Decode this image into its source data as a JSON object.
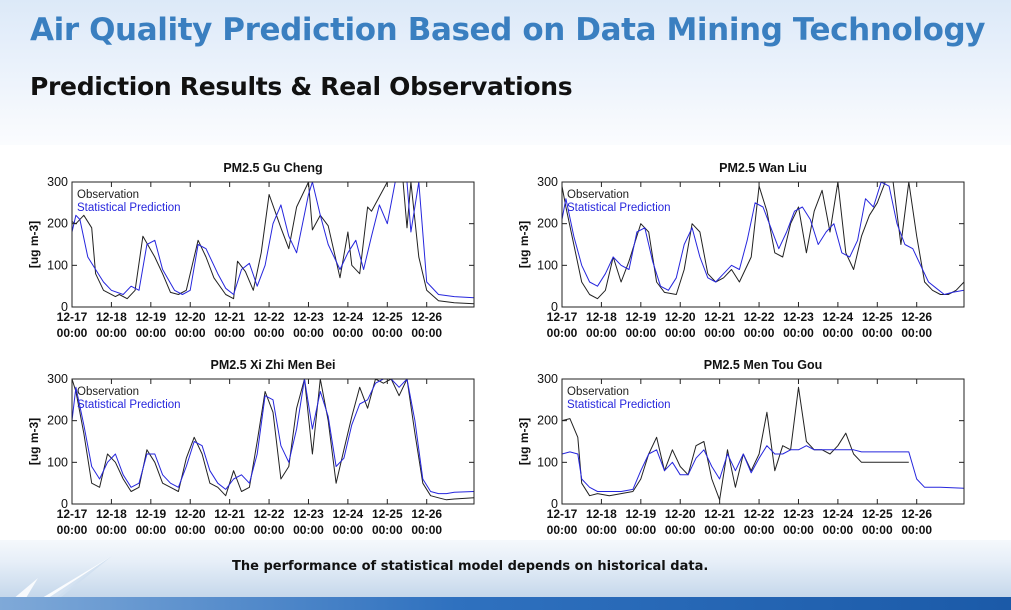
{
  "slide": {
    "title": "Air Quality Prediction Based on Data Mining Technology",
    "subtitle": "Prediction Results & Real Observations",
    "footer": "The performance of statistical model depends on historical data."
  },
  "colors": {
    "observation": "#222222",
    "prediction": "#2626dd",
    "title": "#3a7fc0"
  },
  "chart_data": [
    {
      "type": "line",
      "title": "PM2.5  Gu Cheng",
      "ylabel": "[ug m-3]",
      "ylim": [
        0,
        300
      ],
      "yticks": [
        0,
        100,
        200,
        300
      ],
      "xlim": [
        0,
        10.2
      ],
      "x_ticks": [
        {
          "date": "12-17",
          "time": "00:00"
        },
        {
          "date": "12-18",
          "time": "00:00"
        },
        {
          "date": "12-19",
          "time": "00:00"
        },
        {
          "date": "12-20",
          "time": "00:00"
        },
        {
          "date": "12-21",
          "time": "00:00"
        },
        {
          "date": "12-22",
          "time": "00:00"
        },
        {
          "date": "12-23",
          "time": "00:00"
        },
        {
          "date": "12-24",
          "time": "00:00"
        },
        {
          "date": "12-25",
          "time": "00:00"
        },
        {
          "date": "12-26",
          "time": "00:00"
        }
      ],
      "legend": "top-left",
      "series": [
        {
          "name": "Observation",
          "color": "#222222",
          "x": [
            0,
            0.1,
            0.3,
            0.5,
            0.6,
            0.8,
            1.1,
            1.2,
            1.4,
            1.6,
            1.8,
            2.1,
            2.3,
            2.5,
            2.7,
            2.9,
            3.2,
            3.4,
            3.6,
            3.9,
            4.1,
            4.2,
            4.4,
            4.6,
            4.8,
            5.0,
            5.3,
            5.5,
            5.7,
            6.0,
            6.1,
            6.3,
            6.5,
            6.8,
            7.0,
            7.1,
            7.3,
            7.5,
            7.6,
            8.0,
            8.2,
            8.4,
            8.5,
            8.6,
            8.8,
            9.0,
            9.3,
            9.7,
            10.2
          ],
          "y": [
            205,
            200,
            220,
            190,
            80,
            40,
            25,
            30,
            20,
            40,
            170,
            120,
            80,
            35,
            30,
            40,
            160,
            120,
            70,
            30,
            20,
            110,
            85,
            40,
            130,
            270,
            190,
            140,
            240,
            300,
            185,
            220,
            195,
            70,
            180,
            100,
            80,
            240,
            230,
            300,
            300,
            300,
            190,
            300,
            120,
            40,
            15,
            10,
            8
          ]
        },
        {
          "name": "Statistical Prediction",
          "color": "#2626dd",
          "x": [
            0,
            0.1,
            0.2,
            0.4,
            0.6,
            0.8,
            1.0,
            1.3,
            1.5,
            1.7,
            1.9,
            2.1,
            2.3,
            2.6,
            2.8,
            3.0,
            3.2,
            3.4,
            3.7,
            3.9,
            4.1,
            4.3,
            4.5,
            4.7,
            4.9,
            5.1,
            5.3,
            5.5,
            5.7,
            6.0,
            6.1,
            6.3,
            6.5,
            6.8,
            7.0,
            7.2,
            7.4,
            7.6,
            7.8,
            8.0,
            8.2,
            8.5,
            8.6,
            8.8,
            9.0,
            9.3,
            9.7,
            10.2
          ],
          "y": [
            180,
            220,
            210,
            120,
            90,
            60,
            40,
            30,
            50,
            40,
            150,
            160,
            90,
            40,
            30,
            40,
            150,
            140,
            80,
            45,
            30,
            90,
            105,
            50,
            100,
            200,
            245,
            170,
            130,
            270,
            300,
            220,
            150,
            90,
            130,
            160,
            90,
            170,
            245,
            200,
            300,
            300,
            180,
            300,
            60,
            30,
            25,
            22
          ]
        }
      ]
    },
    {
      "type": "line",
      "title": "PM2.5  Wan Liu",
      "ylabel": "[ug m-3]",
      "ylim": [
        0,
        300
      ],
      "yticks": [
        0,
        100,
        200,
        300
      ],
      "xlim": [
        0,
        10.2
      ],
      "x_ticks": [
        {
          "date": "12-17",
          "time": "00:00"
        },
        {
          "date": "12-18",
          "time": "00:00"
        },
        {
          "date": "12-19",
          "time": "00:00"
        },
        {
          "date": "12-20",
          "time": "00:00"
        },
        {
          "date": "12-21",
          "time": "00:00"
        },
        {
          "date": "12-22",
          "time": "00:00"
        },
        {
          "date": "12-23",
          "time": "00:00"
        },
        {
          "date": "12-24",
          "time": "00:00"
        },
        {
          "date": "12-25",
          "time": "00:00"
        },
        {
          "date": "12-26",
          "time": "00:00"
        }
      ],
      "legend": "top-left",
      "series": [
        {
          "name": "Observation",
          "color": "#222222",
          "x": [
            0,
            0.1,
            0.3,
            0.5,
            0.7,
            0.9,
            1.1,
            1.3,
            1.5,
            1.7,
            2.0,
            2.2,
            2.4,
            2.6,
            2.9,
            3.1,
            3.3,
            3.5,
            3.7,
            3.9,
            4.1,
            4.3,
            4.5,
            4.8,
            5.0,
            5.2,
            5.4,
            5.6,
            5.8,
            6.0,
            6.2,
            6.4,
            6.6,
            6.8,
            7.0,
            7.2,
            7.4,
            7.6,
            7.8,
            8.0,
            8.2,
            8.4,
            8.6,
            8.8,
            9.0,
            9.2,
            9.4,
            9.6,
            9.8,
            10.0,
            10.2
          ],
          "y": [
            290,
            240,
            150,
            60,
            30,
            20,
            40,
            120,
            60,
            110,
            200,
            180,
            60,
            35,
            30,
            90,
            200,
            180,
            80,
            60,
            70,
            90,
            60,
            120,
            290,
            230,
            130,
            120,
            200,
            240,
            130,
            230,
            280,
            180,
            300,
            130,
            90,
            170,
            220,
            250,
            300,
            300,
            150,
            300,
            170,
            60,
            40,
            30,
            30,
            40,
            60
          ]
        },
        {
          "name": "Statistical Prediction",
          "color": "#2626dd",
          "x": [
            0,
            0.1,
            0.3,
            0.5,
            0.7,
            0.9,
            1.1,
            1.3,
            1.5,
            1.7,
            1.9,
            2.1,
            2.3,
            2.5,
            2.7,
            2.9,
            3.1,
            3.3,
            3.5,
            3.7,
            3.9,
            4.1,
            4.3,
            4.5,
            4.7,
            4.9,
            5.1,
            5.3,
            5.5,
            5.7,
            5.9,
            6.1,
            6.3,
            6.5,
            6.7,
            6.9,
            7.1,
            7.3,
            7.5,
            7.7,
            7.9,
            8.1,
            8.3,
            8.5,
            8.7,
            8.9,
            9.1,
            9.3,
            9.5,
            9.7,
            9.9,
            10.2
          ],
          "y": [
            210,
            260,
            170,
            100,
            60,
            50,
            80,
            120,
            100,
            90,
            180,
            190,
            110,
            50,
            40,
            70,
            150,
            190,
            120,
            70,
            60,
            80,
            100,
            90,
            160,
            250,
            240,
            190,
            140,
            180,
            230,
            240,
            210,
            150,
            180,
            200,
            130,
            120,
            160,
            260,
            240,
            300,
            290,
            200,
            150,
            140,
            100,
            60,
            45,
            30,
            35,
            40
          ]
        }
      ]
    },
    {
      "type": "line",
      "title": "PM2.5  Xi Zhi Men Bei",
      "ylabel": "[ug m-3]",
      "ylim": [
        0,
        300
      ],
      "yticks": [
        0,
        100,
        200,
        300
      ],
      "xlim": [
        0,
        10.2
      ],
      "x_ticks": [
        {
          "date": "12-17",
          "time": "00:00"
        },
        {
          "date": "12-18",
          "time": "00:00"
        },
        {
          "date": "12-19",
          "time": "00:00"
        },
        {
          "date": "12-20",
          "time": "00:00"
        },
        {
          "date": "12-21",
          "time": "00:00"
        },
        {
          "date": "12-22",
          "time": "00:00"
        },
        {
          "date": "12-23",
          "time": "00:00"
        },
        {
          "date": "12-24",
          "time": "00:00"
        },
        {
          "date": "12-25",
          "time": "00:00"
        },
        {
          "date": "12-26",
          "time": "00:00"
        }
      ],
      "legend": "top-left",
      "series": [
        {
          "name": "Observation",
          "color": "#222222",
          "x": [
            0,
            0.1,
            0.3,
            0.5,
            0.7,
            0.9,
            1.1,
            1.3,
            1.5,
            1.7,
            1.9,
            2.1,
            2.3,
            2.5,
            2.7,
            2.9,
            3.1,
            3.3,
            3.5,
            3.7,
            3.9,
            4.1,
            4.3,
            4.5,
            4.7,
            4.9,
            5.1,
            5.3,
            5.5,
            5.7,
            5.9,
            6.1,
            6.3,
            6.5,
            6.7,
            6.9,
            7.1,
            7.3,
            7.5,
            7.7,
            7.9,
            8.1,
            8.3,
            8.5,
            8.7,
            8.9,
            9.1,
            9.3,
            9.5,
            9.7,
            10.2
          ],
          "y": [
            300,
            270,
            170,
            50,
            40,
            120,
            100,
            60,
            30,
            40,
            130,
            100,
            50,
            40,
            30,
            110,
            160,
            120,
            50,
            40,
            20,
            80,
            30,
            40,
            150,
            270,
            220,
            60,
            90,
            230,
            300,
            120,
            300,
            200,
            50,
            130,
            210,
            280,
            230,
            300,
            290,
            300,
            260,
            300,
            170,
            50,
            20,
            15,
            10,
            12,
            15
          ]
        },
        {
          "name": "Statistical Prediction",
          "color": "#2626dd",
          "x": [
            0,
            0.1,
            0.3,
            0.5,
            0.7,
            0.9,
            1.1,
            1.3,
            1.5,
            1.7,
            1.9,
            2.1,
            2.3,
            2.5,
            2.7,
            2.9,
            3.1,
            3.3,
            3.5,
            3.7,
            3.9,
            4.1,
            4.3,
            4.5,
            4.7,
            4.9,
            5.1,
            5.3,
            5.5,
            5.7,
            5.9,
            6.1,
            6.3,
            6.5,
            6.7,
            6.9,
            7.1,
            7.3,
            7.5,
            7.7,
            7.9,
            8.1,
            8.3,
            8.5,
            8.7,
            8.9,
            9.1,
            9.3,
            9.5,
            9.7,
            10.2
          ],
          "y": [
            200,
            280,
            190,
            90,
            60,
            100,
            120,
            70,
            40,
            50,
            120,
            120,
            70,
            50,
            40,
            90,
            150,
            140,
            80,
            50,
            35,
            60,
            70,
            50,
            120,
            260,
            250,
            140,
            100,
            180,
            300,
            180,
            270,
            210,
            90,
            110,
            190,
            240,
            250,
            290,
            300,
            300,
            280,
            300,
            200,
            60,
            30,
            25,
            25,
            28,
            30
          ]
        }
      ]
    },
    {
      "type": "line",
      "title": "PM2.5  Men Tou Gou",
      "ylabel": "[ug m-3]",
      "ylim": [
        0,
        300
      ],
      "yticks": [
        0,
        100,
        200,
        300
      ],
      "xlim": [
        0,
        10.2
      ],
      "x_ticks": [
        {
          "date": "12-17",
          "time": "00:00"
        },
        {
          "date": "12-18",
          "time": "00:00"
        },
        {
          "date": "12-19",
          "time": "00:00"
        },
        {
          "date": "12-20",
          "time": "00:00"
        },
        {
          "date": "12-21",
          "time": "00:00"
        },
        {
          "date": "12-22",
          "time": "00:00"
        },
        {
          "date": "12-23",
          "time": "00:00"
        },
        {
          "date": "12-24",
          "time": "00:00"
        },
        {
          "date": "12-25",
          "time": "00:00"
        },
        {
          "date": "12-26",
          "time": "00:00"
        }
      ],
      "legend": "top-left",
      "series": [
        {
          "name": "Observation",
          "color": "#222222",
          "x": [
            0,
            0.2,
            0.4,
            0.5,
            0.7,
            0.9,
            1.2,
            1.5,
            1.8,
            2.0,
            2.2,
            2.4,
            2.6,
            2.8,
            3.0,
            3.2,
            3.4,
            3.6,
            3.8,
            4.0,
            4.2,
            4.4,
            4.6,
            4.8,
            5.0,
            5.2,
            5.4,
            5.6,
            5.8,
            6.0,
            6.2,
            6.4,
            6.6,
            6.8,
            7.0,
            7.2,
            7.4,
            7.6,
            7.8,
            8.0,
            8.4,
            8.8
          ],
          "y": [
            200,
            205,
            160,
            50,
            20,
            25,
            20,
            25,
            30,
            60,
            120,
            160,
            80,
            130,
            90,
            70,
            140,
            150,
            60,
            10,
            130,
            40,
            120,
            80,
            120,
            220,
            80,
            140,
            130,
            280,
            150,
            130,
            130,
            120,
            140,
            170,
            120,
            100,
            100,
            100,
            100,
            100
          ]
        },
        {
          "name": "Statistical Prediction",
          "color": "#2626dd",
          "x": [
            0,
            0.2,
            0.4,
            0.5,
            0.7,
            0.9,
            1.2,
            1.5,
            1.8,
            2.0,
            2.2,
            2.4,
            2.6,
            2.8,
            3.0,
            3.2,
            3.4,
            3.6,
            3.8,
            4.0,
            4.2,
            4.4,
            4.6,
            4.8,
            5.0,
            5.2,
            5.4,
            5.6,
            5.8,
            6.0,
            6.2,
            6.4,
            6.6,
            6.8,
            7.0,
            7.2,
            7.4,
            7.6,
            7.8,
            8.0,
            8.4,
            8.8,
            9.0,
            9.2,
            9.6,
            10.2
          ],
          "y": [
            120,
            125,
            120,
            60,
            40,
            30,
            30,
            30,
            35,
            80,
            120,
            130,
            80,
            100,
            70,
            70,
            110,
            130,
            90,
            60,
            120,
            80,
            120,
            75,
            110,
            140,
            120,
            120,
            130,
            130,
            140,
            130,
            130,
            130,
            130,
            130,
            130,
            125,
            125,
            125,
            125,
            125,
            60,
            40,
            40,
            38
          ]
        }
      ]
    }
  ]
}
